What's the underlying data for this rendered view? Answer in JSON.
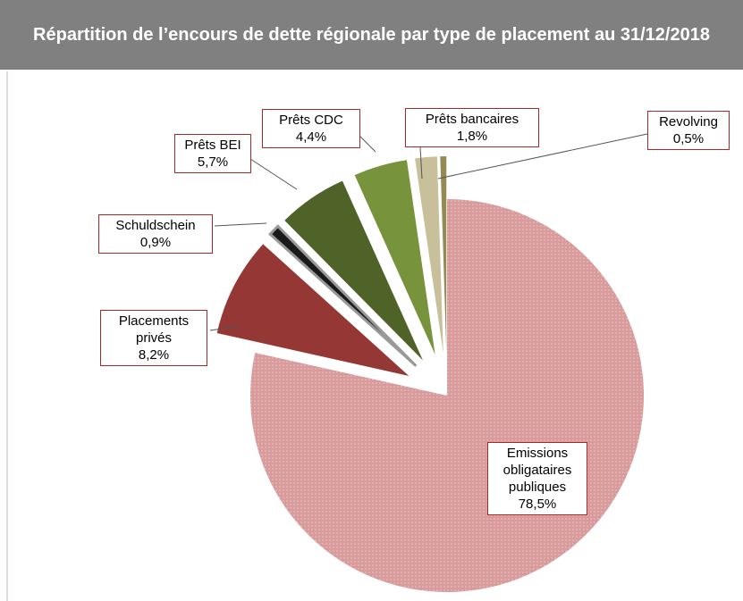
{
  "chart_data": {
    "type": "pie",
    "title": "Répartition de l’encours de dette régionale par type de placement au 31/12/2018",
    "categories": [
      "Emissions obligataires publiques",
      "Placements privés",
      "Schuldschein",
      "Prêts BEI",
      "Prêts CDC",
      "Prêts bancaires",
      "Revolving"
    ],
    "values": [
      78.5,
      8.2,
      0.9,
      5.7,
      4.4,
      1.8,
      0.5
    ],
    "value_labels": [
      "78,5%",
      "8,2%",
      "0,9%",
      "5,7%",
      "4,4%",
      "1,8%",
      "0,5%"
    ],
    "colors": [
      "#d99a9c",
      "#953735",
      "#1a1a1a",
      "#4f6228",
      "#77933c",
      "#c8c09a",
      "#948a54"
    ]
  }
}
